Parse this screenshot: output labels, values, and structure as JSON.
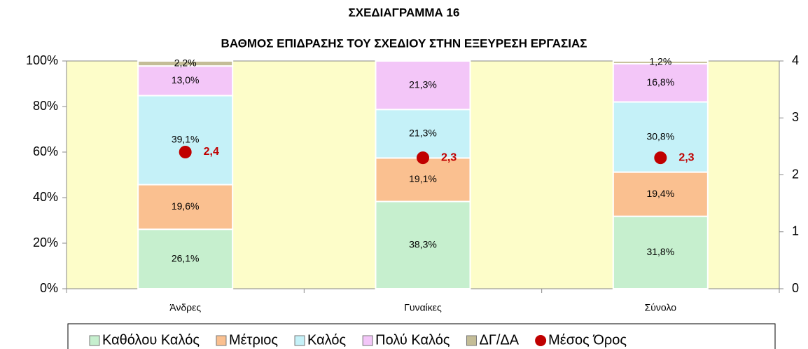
{
  "chart_data": {
    "type": "bar",
    "stacked": true,
    "title": "ΣΧΕΔΙΑΓΡΑΜΜΑ 16",
    "subtitle": "ΒΑΘΜΟΣ ΕΠΙΔΡΑΣΗΣ ΤΟΥ ΣΧΕΔΙΟΥ ΣΤΗΝ ΕΞΕΥΡΕΣΗ ΕΡΓΑΣΙΑΣ",
    "categories": [
      "Άνδρες",
      "Γυναίκες",
      "Σύνολο"
    ],
    "series": [
      {
        "name": "Καθόλου Καλός",
        "color": "#c6efce",
        "values": [
          26.1,
          38.3,
          31.8
        ],
        "value_labels": [
          "26,1%",
          "38,3%",
          "31,8%"
        ]
      },
      {
        "name": "Μέτριος",
        "color": "#fac090",
        "values": [
          19.6,
          19.1,
          19.4
        ],
        "value_labels": [
          "19,6%",
          "19,1%",
          "19,4%"
        ]
      },
      {
        "name": "Καλός",
        "color": "#c5f1f8",
        "values": [
          39.1,
          21.3,
          30.8
        ],
        "value_labels": [
          "39,1%",
          "21,3%",
          "30,8%"
        ]
      },
      {
        "name": "Πολύ Καλός",
        "color": "#f3c6f8",
        "values": [
          13.0,
          21.3,
          16.8
        ],
        "value_labels": [
          "13,0%",
          "21,3%",
          "16,8%"
        ]
      },
      {
        "name": "ΔΓ/ΔΑ",
        "color": "#c4bd97",
        "values": [
          2.2,
          0,
          1.2
        ],
        "value_labels": [
          "2,2%",
          null,
          "1,2%"
        ]
      },
      {
        "name": "Μέσος Όρος",
        "color": "#c00000",
        "axis": "y2",
        "type": "scatter",
        "values": [
          2.4,
          2.3,
          2.3
        ],
        "value_labels": [
          "2,4",
          "2,3",
          "2,3"
        ]
      }
    ],
    "ylim": [
      0,
      100
    ],
    "yticks": [
      {
        "value": 0,
        "label": "0%"
      },
      {
        "value": 20,
        "label": "20%"
      },
      {
        "value": 40,
        "label": "40%"
      },
      {
        "value": 60,
        "label": "60%"
      },
      {
        "value": 80,
        "label": "80%"
      },
      {
        "value": 100,
        "label": "100%"
      }
    ],
    "y2lim": [
      0,
      4
    ],
    "y2ticks": [
      0,
      1,
      2,
      3,
      4
    ],
    "plot_background": "#fdfdc9",
    "legend": "bottom"
  }
}
